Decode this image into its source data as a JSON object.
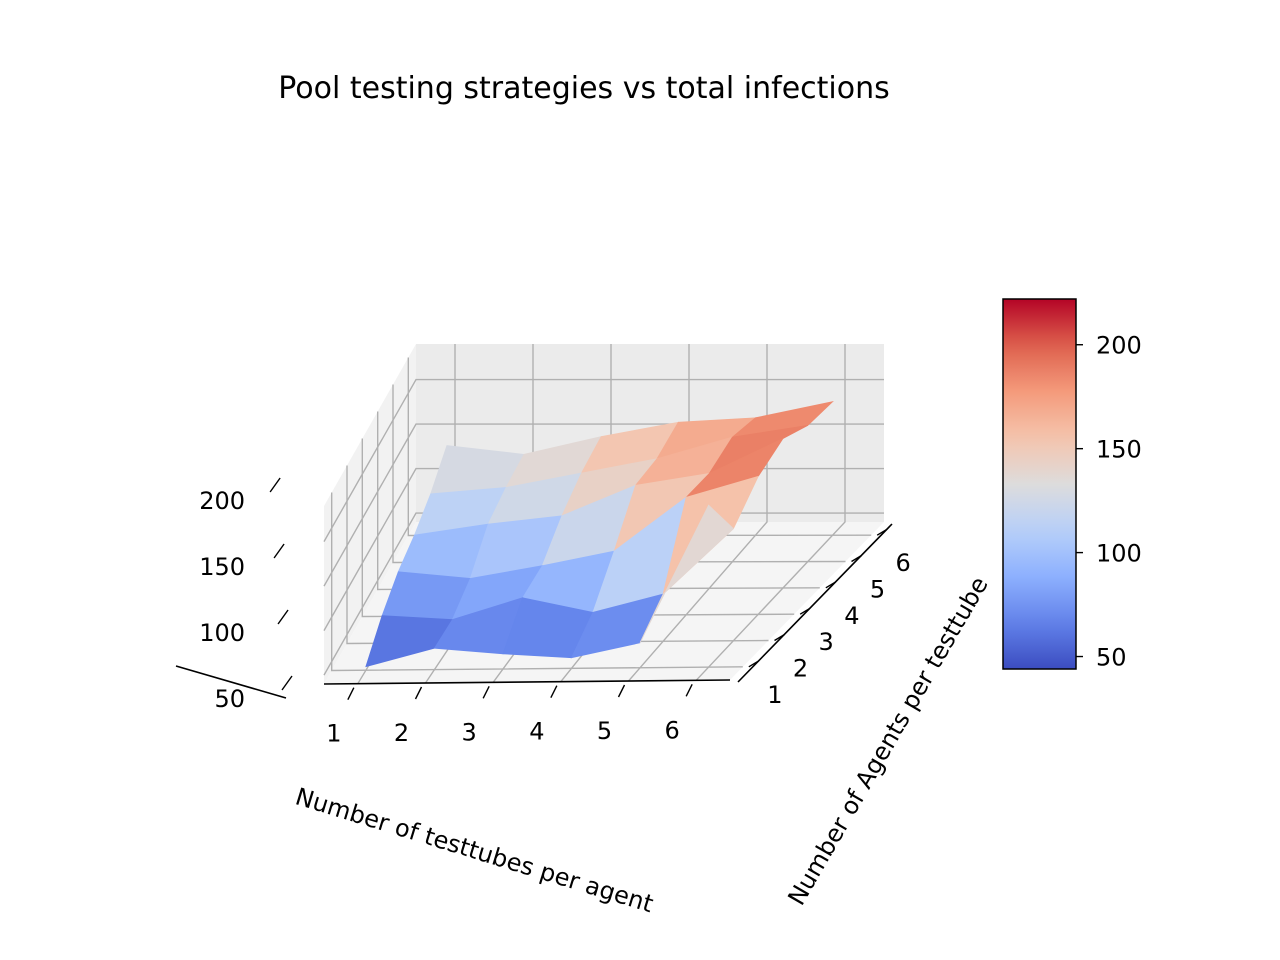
{
  "chart_data": {
    "type": "surface3d",
    "title": "Pool testing strategies vs total infections",
    "xlabel": "Number of testtubes per agent",
    "ylabel": "Number of Agents per testtube",
    "zlabel": "",
    "x": [
      1,
      2,
      3,
      4,
      5,
      6
    ],
    "y": [
      1,
      2,
      3,
      4,
      5,
      6
    ],
    "x_ticks": [
      "1",
      "2",
      "3",
      "4",
      "5",
      "6"
    ],
    "y_ticks": [
      "1",
      "2",
      "3",
      "4",
      "5",
      "6"
    ],
    "z_ticks": [
      "50",
      "100",
      "150",
      "200"
    ],
    "zlim": [
      40,
      240
    ],
    "z": [
      [
        44,
        64,
        57,
        52,
        68,
        222
      ],
      [
        71,
        66,
        90,
        73,
        93,
        166
      ],
      [
        90,
        82,
        96,
        112,
        172,
        195
      ],
      [
        101,
        113,
        122,
        156,
        169,
        208
      ],
      [
        117,
        124,
        140,
        156,
        180,
        193
      ],
      [
        141,
        131,
        151,
        167,
        172,
        190
      ]
    ],
    "colormap": "coolwarm",
    "colormap_low": "#3b4cc0",
    "colormap_mid": "#dddcdc",
    "colormap_high": "#b40426",
    "colorbar": {
      "ticks": [
        "50",
        "100",
        "150",
        "200"
      ],
      "range": [
        44,
        222
      ]
    },
    "grid": true
  }
}
